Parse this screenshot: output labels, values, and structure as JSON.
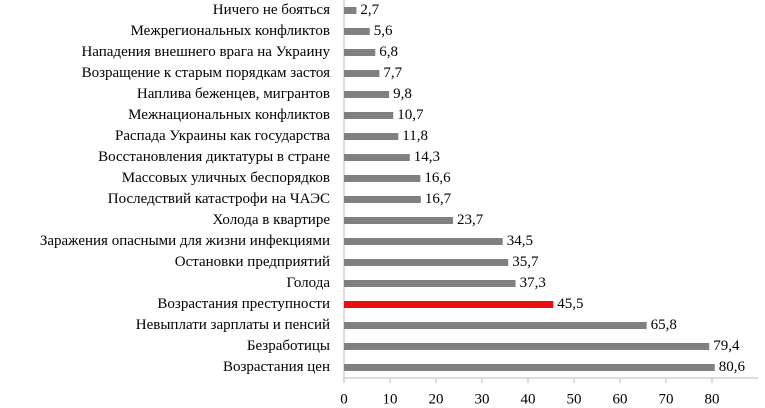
{
  "chart_data": {
    "type": "hbar",
    "categories": [
      "Ничего не бояться",
      "Межрегиональных конфликтов",
      "Нападения внешнего врага на Украину",
      "Возращение к старым порядкам застоя",
      "Наплива беженцев, мигрантов",
      "Межнациональных конфликтов",
      "Распада Украины как государства",
      "Восстановления диктатуры в стране",
      "Массовых уличных беспорядков",
      "Последствий катастрофи на ЧАЭС",
      "Холода в квартире",
      "Заражения опасными для жизни инфекциями",
      "Остановки предприятий",
      "Голода",
      "Возрастания преступности",
      "Невыплати зарплаты и пенсий",
      "Безработицы",
      "Возрастания цен"
    ],
    "values": [
      2.7,
      5.6,
      6.8,
      7.7,
      9.8,
      10.7,
      11.8,
      14.3,
      16.6,
      16.7,
      23.7,
      34.5,
      35.7,
      37.3,
      45.5,
      65.8,
      79.4,
      80.6
    ],
    "value_labels": [
      "2,7",
      "5,6",
      "6,8",
      "7,7",
      "9,8",
      "10,7",
      "11,8",
      "14,3",
      "16,6",
      "16,7",
      "23,7",
      "34,5",
      "35,7",
      "37,3",
      "45,5",
      "65,8",
      "79,4",
      "80,6"
    ],
    "colors": [
      "#808080",
      "#808080",
      "#808080",
      "#808080",
      "#808080",
      "#808080",
      "#808080",
      "#808080",
      "#808080",
      "#808080",
      "#808080",
      "#808080",
      "#808080",
      "#808080",
      "#e8100f",
      "#808080",
      "#808080",
      "#808080"
    ],
    "xlim": [
      0,
      90
    ],
    "xticks": [
      0,
      10,
      20,
      30,
      40,
      50,
      60,
      70,
      80
    ]
  }
}
